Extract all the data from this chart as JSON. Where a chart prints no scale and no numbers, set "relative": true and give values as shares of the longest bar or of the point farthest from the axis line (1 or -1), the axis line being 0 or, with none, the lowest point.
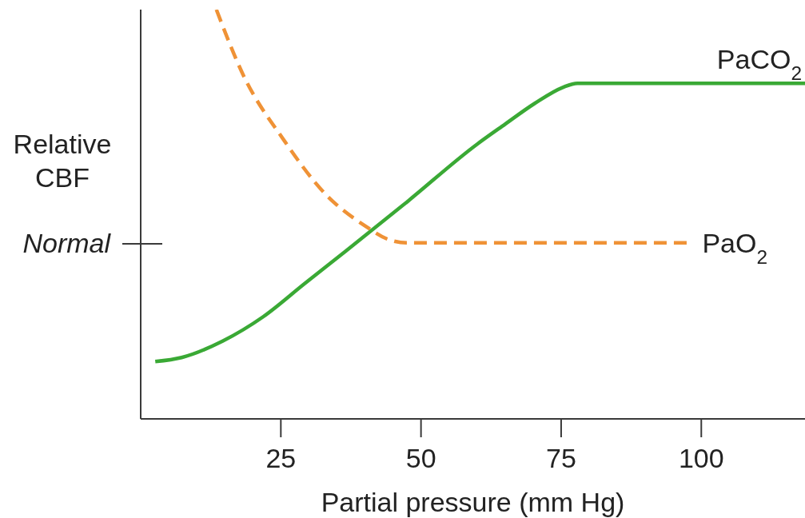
{
  "chart_data": {
    "type": "line",
    "relative": true,
    "xlabel": "Partial pressure (mm Hg)",
    "ylabel": "Relative CBF",
    "xlim": [
      0,
      118.5
    ],
    "xticks": [
      25,
      50,
      75,
      100
    ],
    "marker": "none",
    "annotations": [
      "Normal"
    ],
    "series": [
      {
        "name": "PaCO$_{2}$",
        "color": "#3aa935",
        "line_style": "solid",
        "x": [
          2.6,
          7.3,
          14.6,
          21.9,
          29.2,
          36.6,
          47.5,
          59.9,
          65.0,
          70.2,
          75.3,
          77.9,
          118.5
        ],
        "values": [
          0.14,
          0.15,
          0.19,
          0.25,
          0.33,
          0.41,
          0.53,
          0.67,
          0.72,
          0.77,
          0.81,
          0.82,
          0.82
        ]
      },
      {
        "name": "PaO$_{2}$",
        "color": "#ef9236",
        "line_style": "dashed",
        "x": [
          13.5,
          18.3,
          25.6,
          32.9,
          40.2,
          43.9,
          47.6,
          97.6
        ],
        "values": [
          1.0,
          0.84,
          0.68,
          0.55,
          0.47,
          0.44,
          0.43,
          0.43
        ]
      }
    ]
  }
}
